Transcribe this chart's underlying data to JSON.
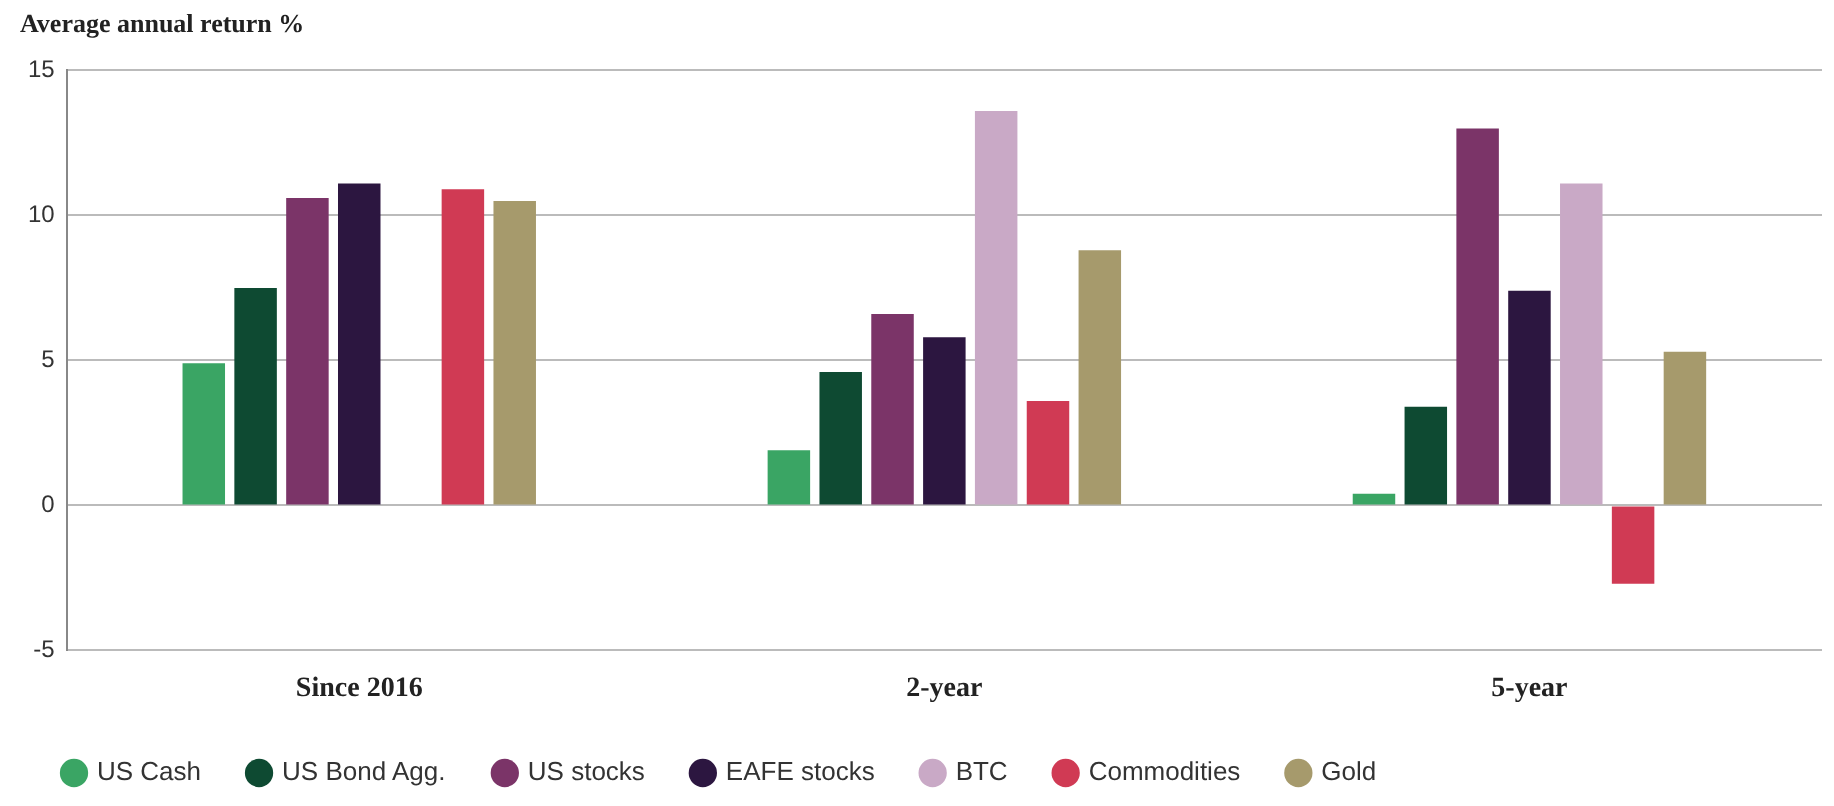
{
  "chart_data": {
    "type": "bar",
    "ylabel": "Average annual return %",
    "categories": [
      "Since 2016",
      "2-year",
      "5-year"
    ],
    "series": [
      {
        "name": "US Cash",
        "color": "#3aa564",
        "values": [
          4.9,
          1.9,
          0.4
        ]
      },
      {
        "name": "US Bond Agg.",
        "color": "#0e4a32",
        "values": [
          7.5,
          4.6,
          3.4
        ]
      },
      {
        "name": "US stocks",
        "color": "#7b3468",
        "values": [
          10.6,
          6.6,
          13.0
        ]
      },
      {
        "name": "EAFE stocks",
        "color": "#2c1640",
        "values": [
          11.1,
          5.8,
          7.4
        ]
      },
      {
        "name": "BTC",
        "color": "#c9a9c6",
        "values": [
          null,
          13.6,
          11.1
        ]
      },
      {
        "name": "Commodities",
        "color": "#d03a54",
        "values": [
          10.9,
          3.6,
          -2.7
        ]
      },
      {
        "name": "Gold",
        "color": "#a69a6c",
        "values": [
          10.5,
          8.8,
          5.3
        ]
      }
    ],
    "ylim": [
      -5,
      15
    ],
    "yticks": [
      -5,
      0,
      5,
      10,
      15
    ],
    "grid": "y",
    "legend": "bottom"
  }
}
